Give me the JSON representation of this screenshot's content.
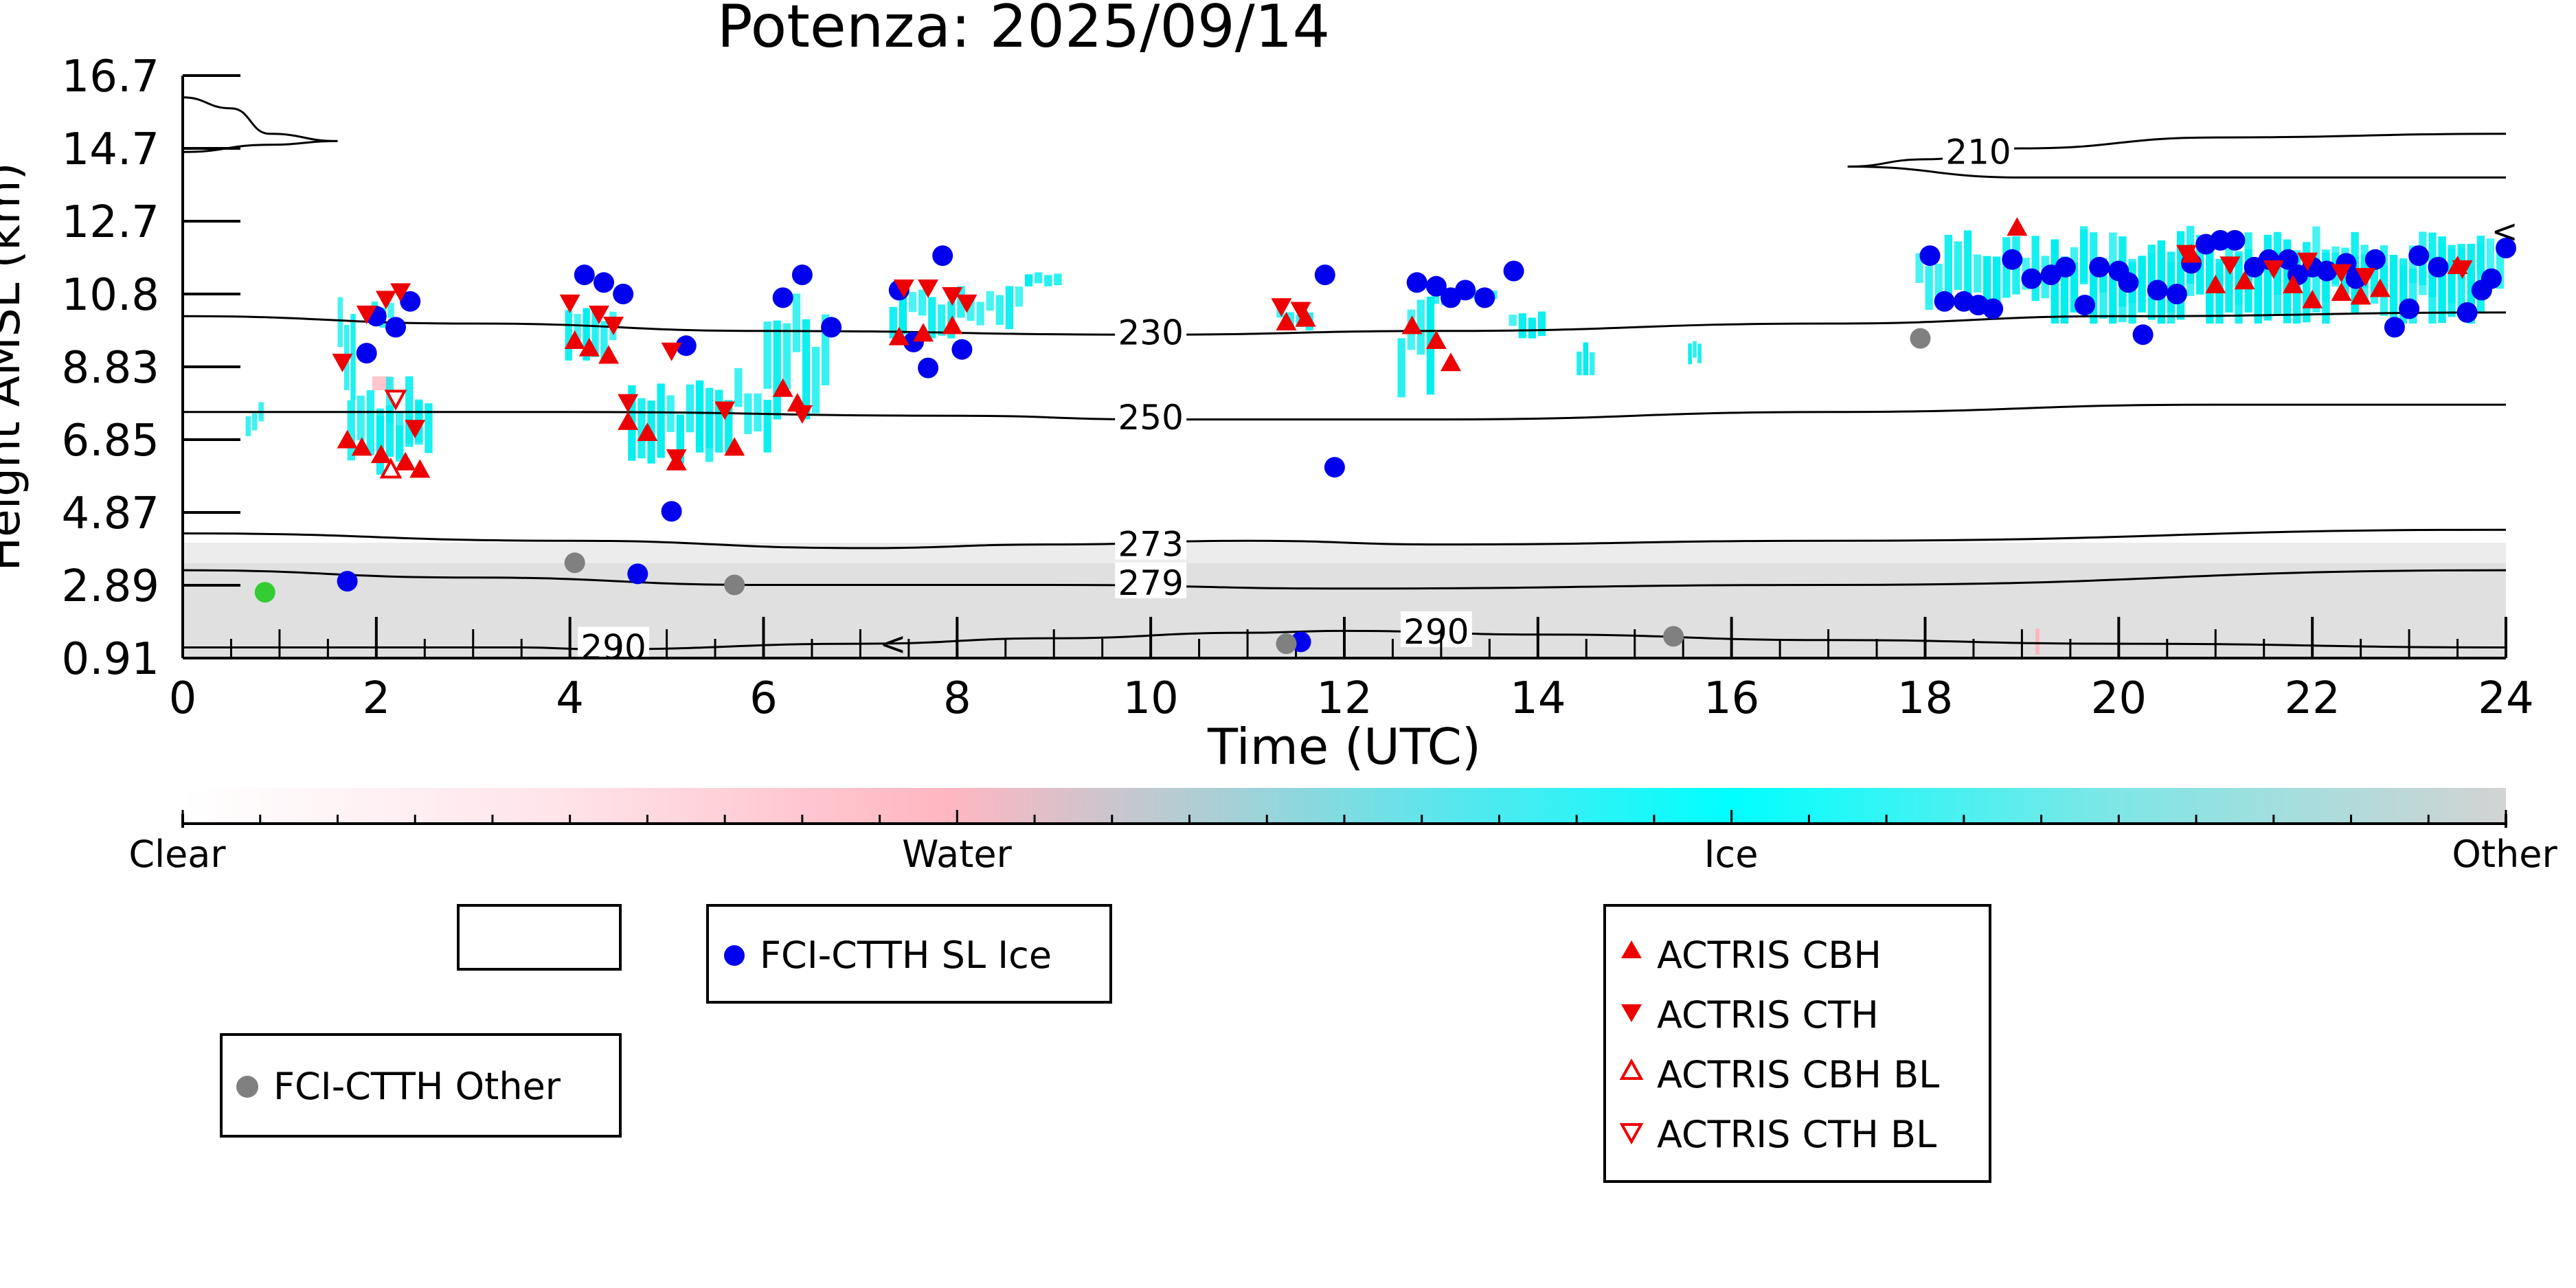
{
  "chart_data": {
    "type": "scatter",
    "title": "Potenza: 2025/09/14",
    "xlabel": "Time (UTC)",
    "ylabel": "Height AMSL (km)",
    "xlim": [
      0,
      24
    ],
    "ylim": [
      0.91,
      16.7
    ],
    "x_ticks": [
      "0",
      "2",
      "4",
      "6",
      "8",
      "10",
      "12",
      "14",
      "16",
      "18",
      "20",
      "22",
      "24"
    ],
    "y_ticks": [
      "0.91",
      "2.89",
      "4.87",
      "6.85",
      "8.83",
      "10.8",
      "12.7",
      "14.7",
      "16.7"
    ],
    "y_tick_values": [
      0.91,
      2.89,
      4.87,
      6.85,
      8.83,
      10.8,
      12.7,
      14.7,
      16.7
    ],
    "grid": false,
    "temperature_contours": [
      {
        "label": "210",
        "points": [
          [
            0.0,
            16.1
          ],
          [
            0.5,
            15.8
          ],
          [
            0.9,
            15.1
          ],
          [
            1.6,
            14.9
          ]
        ]
      },
      {
        "label": "",
        "points": [
          [
            0.0,
            14.6
          ],
          [
            0.9,
            14.8
          ],
          [
            1.6,
            14.9
          ]
        ]
      },
      {
        "label": "210",
        "points": [
          [
            17.2,
            14.2
          ],
          [
            18.0,
            14.4
          ],
          [
            19.0,
            14.7
          ],
          [
            21.0,
            15.0
          ],
          [
            24.0,
            15.1
          ]
        ]
      },
      {
        "label": "",
        "points": [
          [
            17.2,
            14.2
          ],
          [
            19.0,
            13.9
          ],
          [
            21.0,
            13.9
          ],
          [
            24.0,
            13.9
          ]
        ]
      },
      {
        "label": "230",
        "points": [
          [
            0.0,
            10.2
          ],
          [
            3.0,
            10.0
          ],
          [
            6.0,
            9.8
          ],
          [
            10.0,
            9.7
          ],
          [
            13.0,
            9.8
          ],
          [
            17.0,
            10.0
          ],
          [
            20.0,
            10.2
          ],
          [
            24.0,
            10.3
          ]
        ]
      },
      {
        "label": "250",
        "points": [
          [
            0.0,
            7.6
          ],
          [
            4.0,
            7.6
          ],
          [
            8.0,
            7.5
          ],
          [
            10.0,
            7.4
          ],
          [
            13.0,
            7.4
          ],
          [
            17.0,
            7.6
          ],
          [
            21.0,
            7.8
          ],
          [
            24.0,
            7.8
          ]
        ]
      },
      {
        "label": "273",
        "points": [
          [
            0.0,
            4.3
          ],
          [
            4.0,
            4.1
          ],
          [
            7.0,
            3.9
          ],
          [
            9.0,
            4.0
          ],
          [
            11.0,
            4.1
          ],
          [
            13.0,
            4.0
          ],
          [
            17.0,
            4.1
          ],
          [
            24.0,
            4.4
          ]
        ]
      },
      {
        "label": "279",
        "points": [
          [
            0.0,
            3.3
          ],
          [
            3.0,
            3.1
          ],
          [
            6.0,
            2.9
          ],
          [
            9.0,
            2.9
          ],
          [
            12.0,
            2.8
          ],
          [
            17.0,
            2.9
          ],
          [
            24.0,
            3.3
          ]
        ]
      },
      {
        "label": "290",
        "points": [
          [
            0.0,
            1.2
          ],
          [
            3.5,
            1.2
          ],
          [
            4.3,
            1.15
          ],
          [
            7.0,
            1.3
          ],
          [
            9.0,
            1.45
          ],
          [
            11.0,
            1.6
          ],
          [
            12.0,
            1.65
          ],
          [
            14.0,
            1.55
          ],
          [
            17.0,
            1.4
          ],
          [
            20.0,
            1.3
          ],
          [
            24.0,
            1.2
          ]
        ]
      }
    ],
    "series": [
      {
        "name": "FCI-CTTH SL Ice",
        "marker": "circle",
        "color": "#0000ee",
        "points": [
          [
            1.7,
            3.0
          ],
          [
            1.9,
            9.2
          ],
          [
            2.0,
            10.2
          ],
          [
            2.2,
            9.9
          ],
          [
            2.35,
            10.6
          ],
          [
            4.15,
            11.3
          ],
          [
            4.35,
            11.1
          ],
          [
            4.55,
            10.8
          ],
          [
            4.7,
            3.2
          ],
          [
            5.05,
            4.9
          ],
          [
            5.2,
            9.4
          ],
          [
            6.2,
            10.7
          ],
          [
            6.4,
            11.3
          ],
          [
            6.7,
            9.9
          ],
          [
            7.4,
            10.9
          ],
          [
            7.55,
            9.5
          ],
          [
            7.7,
            8.8
          ],
          [
            7.85,
            11.8
          ],
          [
            8.05,
            9.3
          ],
          [
            11.55,
            1.35
          ],
          [
            11.8,
            11.3
          ],
          [
            11.9,
            6.1
          ],
          [
            12.75,
            11.1
          ],
          [
            12.95,
            11.0
          ],
          [
            13.1,
            10.7
          ],
          [
            13.25,
            10.9
          ],
          [
            13.45,
            10.7
          ],
          [
            13.75,
            11.4
          ],
          [
            18.05,
            11.8
          ],
          [
            18.2,
            10.6
          ],
          [
            18.4,
            10.6
          ],
          [
            18.55,
            10.5
          ],
          [
            18.7,
            10.4
          ],
          [
            18.9,
            11.7
          ],
          [
            19.1,
            11.2
          ],
          [
            19.3,
            11.3
          ],
          [
            19.45,
            11.5
          ],
          [
            19.65,
            10.5
          ],
          [
            19.8,
            11.5
          ],
          [
            20.0,
            11.4
          ],
          [
            20.1,
            11.1
          ],
          [
            20.25,
            9.7
          ],
          [
            20.4,
            10.9
          ],
          [
            20.6,
            10.8
          ],
          [
            20.75,
            11.6
          ],
          [
            20.9,
            12.1
          ],
          [
            21.05,
            12.2
          ],
          [
            21.2,
            12.2
          ],
          [
            21.4,
            11.5
          ],
          [
            21.55,
            11.7
          ],
          [
            21.75,
            11.7
          ],
          [
            21.85,
            11.3
          ],
          [
            22.0,
            11.5
          ],
          [
            22.15,
            11.4
          ],
          [
            22.35,
            11.6
          ],
          [
            22.45,
            11.2
          ],
          [
            22.65,
            11.7
          ],
          [
            22.85,
            9.9
          ],
          [
            23.0,
            10.4
          ],
          [
            23.1,
            11.8
          ],
          [
            23.3,
            11.5
          ],
          [
            23.6,
            10.3
          ],
          [
            23.75,
            10.9
          ],
          [
            23.85,
            11.2
          ],
          [
            24.0,
            12.0
          ]
        ]
      },
      {
        "name": "FCI-CTTH Other",
        "marker": "circle",
        "color": "#808080",
        "points": [
          [
            4.05,
            3.5
          ],
          [
            5.7,
            2.9
          ],
          [
            11.4,
            1.3
          ],
          [
            15.4,
            1.5
          ],
          [
            17.95,
            9.6
          ]
        ]
      },
      {
        "name": "",
        "marker": "circle",
        "color": "#33cc33",
        "points": [
          [
            0.85,
            2.7
          ]
        ]
      },
      {
        "name": "ACTRIS CBH",
        "marker": "triangle-up",
        "color": "#ee0000",
        "points": [
          [
            1.7,
            6.8
          ],
          [
            1.85,
            6.6
          ],
          [
            2.05,
            6.4
          ],
          [
            2.3,
            6.2
          ],
          [
            2.45,
            6.0
          ],
          [
            4.05,
            9.5
          ],
          [
            4.2,
            9.3
          ],
          [
            4.4,
            9.1
          ],
          [
            4.6,
            7.3
          ],
          [
            4.8,
            7.0
          ],
          [
            5.1,
            6.2
          ],
          [
            5.7,
            6.6
          ],
          [
            6.2,
            8.2
          ],
          [
            6.35,
            7.8
          ],
          [
            7.4,
            9.6
          ],
          [
            7.65,
            9.7
          ],
          [
            7.95,
            9.9
          ],
          [
            11.4,
            10.0
          ],
          [
            11.6,
            10.1
          ],
          [
            12.7,
            9.9
          ],
          [
            12.95,
            9.5
          ],
          [
            13.1,
            8.9
          ],
          [
            18.95,
            12.5
          ],
          [
            20.75,
            11.8
          ],
          [
            21.0,
            11.0
          ],
          [
            21.3,
            11.1
          ],
          [
            21.8,
            11.0
          ],
          [
            22.0,
            10.6
          ],
          [
            22.3,
            10.8
          ],
          [
            22.5,
            10.7
          ],
          [
            22.7,
            10.9
          ],
          [
            23.5,
            11.5
          ]
        ]
      },
      {
        "name": "ACTRIS CTH",
        "marker": "triangle-down",
        "color": "#ee0000",
        "points": [
          [
            1.65,
            9.0
          ],
          [
            1.9,
            10.3
          ],
          [
            2.1,
            10.7
          ],
          [
            2.25,
            10.9
          ],
          [
            2.4,
            7.2
          ],
          [
            4.0,
            10.6
          ],
          [
            4.3,
            10.3
          ],
          [
            4.45,
            10.0
          ],
          [
            4.6,
            7.9
          ],
          [
            5.05,
            9.3
          ],
          [
            5.1,
            6.4
          ],
          [
            5.6,
            7.7
          ],
          [
            6.4,
            7.6
          ],
          [
            7.45,
            11.0
          ],
          [
            7.7,
            11.0
          ],
          [
            7.95,
            10.8
          ],
          [
            8.1,
            10.6
          ],
          [
            11.35,
            10.5
          ],
          [
            11.55,
            10.4
          ],
          [
            20.7,
            11.9
          ],
          [
            21.15,
            11.6
          ],
          [
            21.6,
            11.5
          ],
          [
            21.95,
            11.7
          ],
          [
            22.3,
            11.4
          ],
          [
            22.55,
            11.3
          ],
          [
            23.55,
            11.5
          ]
        ]
      },
      {
        "name": "ACTRIS CBH BL",
        "marker": "triangle-up-open",
        "color": "#ee0000",
        "points": [
          [
            2.15,
            6.0
          ]
        ]
      },
      {
        "name": "ACTRIS CTH BL",
        "marker": "triangle-down-open",
        "color": "#ee0000",
        "points": [
          [
            2.2,
            8.0
          ]
        ]
      }
    ],
    "colorbar": {
      "labels": [
        "Clear",
        "Water",
        "Ice",
        "Other"
      ],
      "colors": [
        "#ffffff",
        "#ffb6c1",
        "#00ffff",
        "#d3d3d3"
      ]
    },
    "legends": [
      {
        "entries": []
      },
      {
        "entries": [
          "FCI-CTTH SL Ice"
        ]
      },
      {
        "entries": [
          "FCI-CTTH Other"
        ]
      },
      {
        "entries": [
          "ACTRIS CBH",
          "ACTRIS CTH",
          "ACTRIS CBH BL",
          "ACTRIS CTH BL"
        ]
      }
    ]
  }
}
